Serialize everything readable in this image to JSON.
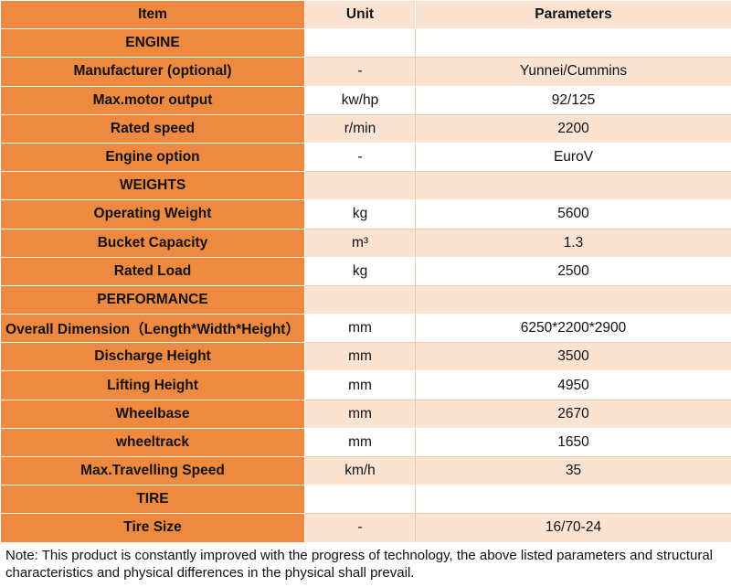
{
  "headers": {
    "item": "Item",
    "unit": "Unit",
    "parameters": "Parameters"
  },
  "rows": [
    {
      "type": "section",
      "item": "ENGINE",
      "unit": "",
      "param": ""
    },
    {
      "type": "data",
      "item": "Manufacturer (optional)",
      "unit": "-",
      "param": "Yunnei/Cummins"
    },
    {
      "type": "data",
      "item": "Max.motor output",
      "unit": "kw/hp",
      "param": "92/125"
    },
    {
      "type": "data",
      "item": "Rated speed",
      "unit": "r/min",
      "param": "2200"
    },
    {
      "type": "data",
      "item": "Engine option",
      "unit": "-",
      "param": "EuroV"
    },
    {
      "type": "section",
      "item": "WEIGHTS",
      "unit": "",
      "param": ""
    },
    {
      "type": "data",
      "item": "Operating Weight",
      "unit": "kg",
      "param": "5600"
    },
    {
      "type": "data",
      "item": "Bucket Capacity",
      "unit": "m³",
      "param": "1.3"
    },
    {
      "type": "data",
      "item": "Rated Load",
      "unit": "kg",
      "param": "2500"
    },
    {
      "type": "section",
      "item": "PERFORMANCE",
      "unit": "",
      "param": ""
    },
    {
      "type": "data",
      "item": "Overall Dimension（Length*Width*Height）",
      "unit": "mm",
      "param": "6250*2200*2900"
    },
    {
      "type": "data",
      "item": "Discharge Height",
      "unit": "mm",
      "param": "3500"
    },
    {
      "type": "data",
      "item": "Lifting Height",
      "unit": "mm",
      "param": "4950"
    },
    {
      "type": "data",
      "item": "Wheelbase",
      "unit": "mm",
      "param": "2670"
    },
    {
      "type": "data",
      "item": "wheeltrack",
      "unit": "mm",
      "param": "1650"
    },
    {
      "type": "data",
      "item": "Max.Travelling Speed",
      "unit": "km/h",
      "param": "35"
    },
    {
      "type": "section",
      "item": "TIRE",
      "unit": "",
      "param": ""
    },
    {
      "type": "data",
      "item": "Tire Size",
      "unit": "-",
      "param": "16/70-24"
    }
  ],
  "note": "Note: This product is constantly improved with the progress of technology, the above listed parameters and structural characteristics and physical differences in the physical shall prevail.",
  "colors": {
    "label_bg": "#ee8a3f",
    "alt_bg": "#fbe3d2",
    "white_bg": "#ffffff"
  }
}
